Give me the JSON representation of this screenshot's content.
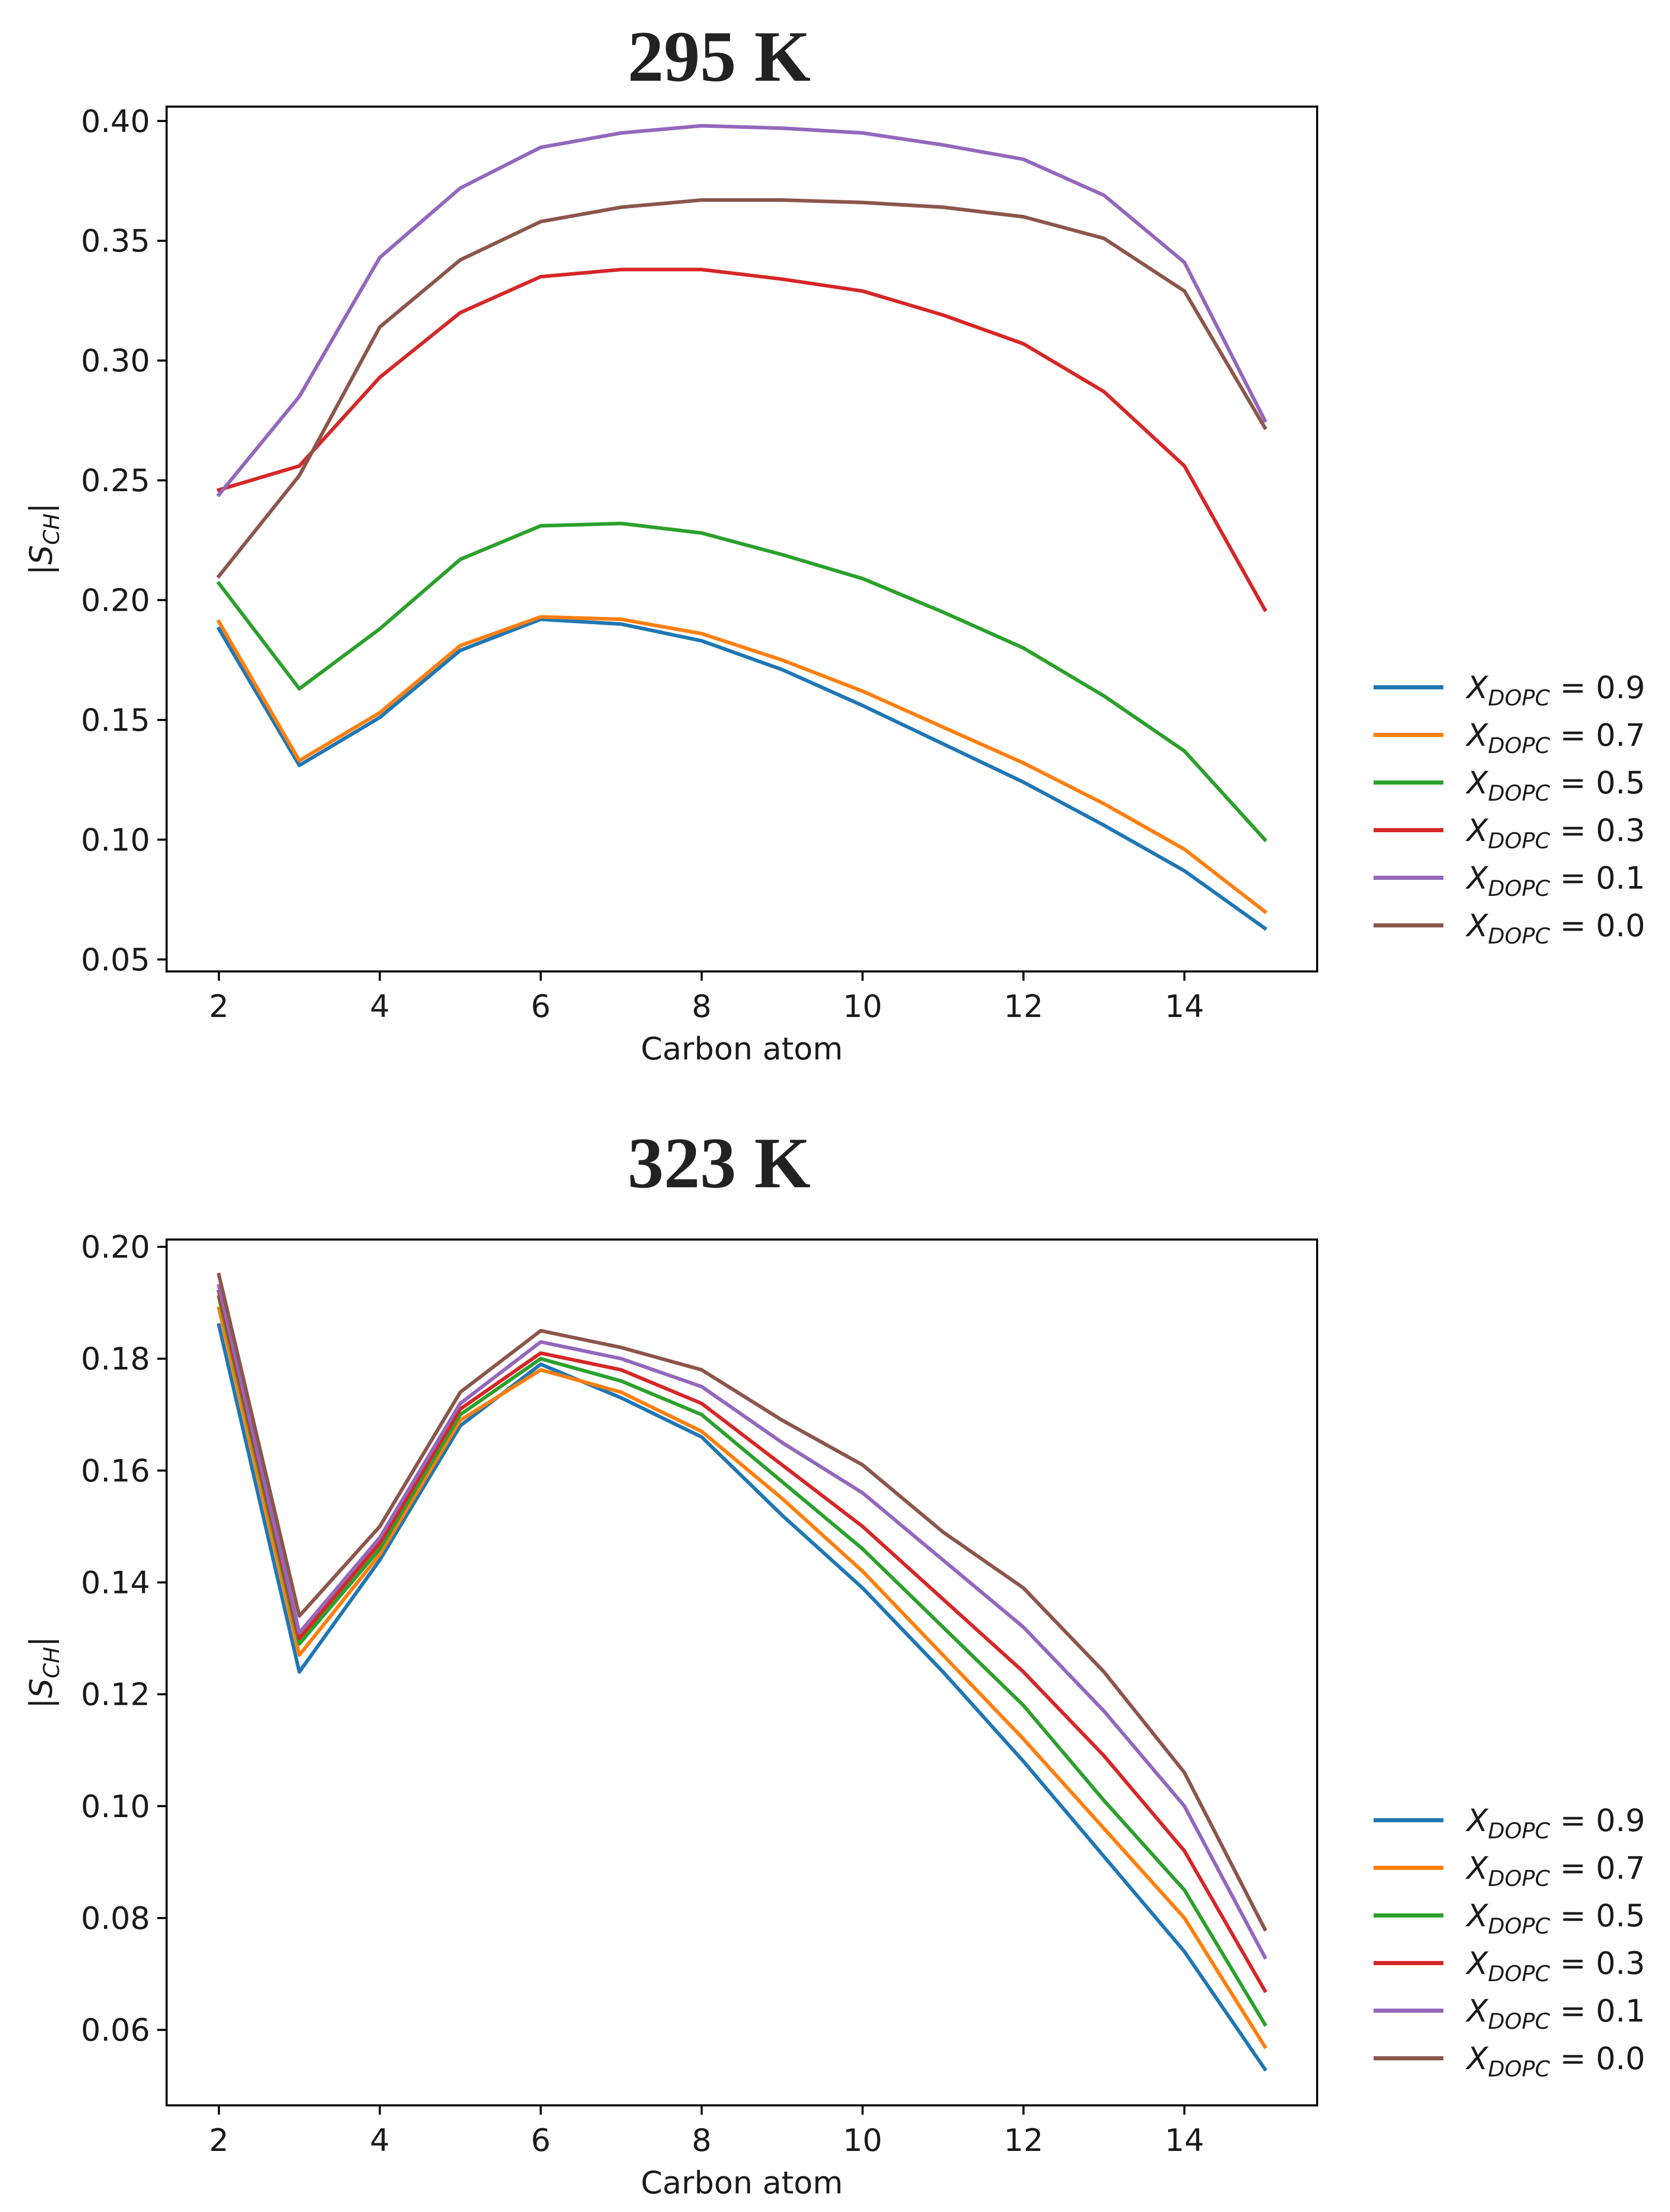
{
  "colors": {
    "0.9": "#1f77b4",
    "0.7": "#ff7f0e",
    "0.5": "#2ca02c",
    "0.3": "#d62728",
    "0.1": "#9467bd",
    "0.0": "#8c564b"
  },
  "chart_data": [
    {
      "type": "line",
      "title": "295 K",
      "xlabel": "Carbon atom",
      "ylabel": "|S_CH|",
      "xlim": [
        1.35,
        15.65
      ],
      "ylim": [
        0.045,
        0.406
      ],
      "xticks": [
        2,
        4,
        6,
        8,
        10,
        12,
        14
      ],
      "yticks": [
        0.05,
        0.1,
        0.15,
        0.2,
        0.25,
        0.3,
        0.35,
        0.4
      ],
      "ytick_labels": [
        "0.05",
        "0.10",
        "0.15",
        "0.20",
        "0.25",
        "0.30",
        "0.35",
        "0.40"
      ],
      "legend_position": "outside-right",
      "x": [
        2,
        3,
        4,
        5,
        6,
        7,
        8,
        9,
        10,
        11,
        12,
        13,
        14,
        15
      ],
      "series": [
        {
          "name": "X_DOPC = 0.9",
          "var": "X",
          "sub": "DOPC",
          "val": "= 0.9",
          "color_key": "0.9",
          "values": [
            0.188,
            0.131,
            0.151,
            0.179,
            0.192,
            0.19,
            0.183,
            0.171,
            0.156,
            0.14,
            0.124,
            0.106,
            0.087,
            0.063
          ]
        },
        {
          "name": "X_DOPC = 0.7",
          "var": "X",
          "sub": "DOPC",
          "val": "= 0.7",
          "color_key": "0.7",
          "values": [
            0.191,
            0.133,
            0.153,
            0.181,
            0.193,
            0.192,
            0.186,
            0.175,
            0.162,
            0.147,
            0.132,
            0.115,
            0.096,
            0.07
          ]
        },
        {
          "name": "X_DOPC = 0.5",
          "var": "X",
          "sub": "DOPC",
          "val": "= 0.5",
          "color_key": "0.5",
          "values": [
            0.207,
            0.163,
            0.188,
            0.217,
            0.231,
            0.232,
            0.228,
            0.219,
            0.209,
            0.195,
            0.18,
            0.16,
            0.137,
            0.1
          ]
        },
        {
          "name": "X_DOPC = 0.3",
          "var": "X",
          "sub": "DOPC",
          "val": "= 0.3",
          "color_key": "0.3",
          "values": [
            0.246,
            0.256,
            0.293,
            0.32,
            0.335,
            0.338,
            0.338,
            0.334,
            0.329,
            0.319,
            0.307,
            0.287,
            0.256,
            0.196
          ]
        },
        {
          "name": "X_DOPC = 0.1",
          "var": "X",
          "sub": "DOPC",
          "val": "= 0.1",
          "color_key": "0.1",
          "values": [
            0.244,
            0.285,
            0.343,
            0.372,
            0.389,
            0.395,
            0.398,
            0.397,
            0.395,
            0.39,
            0.384,
            0.369,
            0.341,
            0.275
          ]
        },
        {
          "name": "X_DOPC = 0.0",
          "var": "X",
          "sub": "DOPC",
          "val": "= 0.0",
          "color_key": "0.0",
          "values": [
            0.21,
            0.252,
            0.314,
            0.342,
            0.358,
            0.364,
            0.367,
            0.367,
            0.366,
            0.364,
            0.36,
            0.351,
            0.329,
            0.272
          ]
        }
      ]
    },
    {
      "type": "line",
      "title": "323 K",
      "xlabel": "Carbon atom",
      "ylabel": "|S_CH|",
      "xlim": [
        1.35,
        15.65
      ],
      "ylim": [
        0.0465,
        0.2013
      ],
      "xticks": [
        2,
        4,
        6,
        8,
        10,
        12,
        14
      ],
      "yticks": [
        0.06,
        0.08,
        0.1,
        0.12,
        0.14,
        0.16,
        0.18,
        0.2
      ],
      "ytick_labels": [
        "0.06",
        "0.08",
        "0.10",
        "0.12",
        "0.14",
        "0.16",
        "0.18",
        "0.20"
      ],
      "legend_position": "outside-right",
      "x": [
        2,
        3,
        4,
        5,
        6,
        7,
        8,
        9,
        10,
        11,
        12,
        13,
        14,
        15
      ],
      "series": [
        {
          "name": "X_DOPC = 0.9",
          "var": "X",
          "sub": "DOPC",
          "val": "= 0.9",
          "color_key": "0.9",
          "values": [
            0.186,
            0.124,
            0.144,
            0.168,
            0.179,
            0.173,
            0.166,
            0.152,
            0.139,
            0.124,
            0.108,
            0.091,
            0.074,
            0.053
          ]
        },
        {
          "name": "X_DOPC = 0.7",
          "var": "X",
          "sub": "DOPC",
          "val": "= 0.7",
          "color_key": "0.7",
          "values": [
            0.189,
            0.127,
            0.145,
            0.169,
            0.178,
            0.174,
            0.167,
            0.155,
            0.142,
            0.127,
            0.112,
            0.096,
            0.08,
            0.057
          ]
        },
        {
          "name": "X_DOPC = 0.5",
          "var": "X",
          "sub": "DOPC",
          "val": "= 0.5",
          "color_key": "0.5",
          "values": [
            0.191,
            0.129,
            0.146,
            0.17,
            0.18,
            0.176,
            0.17,
            0.158,
            0.146,
            0.132,
            0.118,
            0.101,
            0.085,
            0.061
          ]
        },
        {
          "name": "X_DOPC = 0.3",
          "var": "X",
          "sub": "DOPC",
          "val": "= 0.3",
          "color_key": "0.3",
          "values": [
            0.192,
            0.13,
            0.147,
            0.171,
            0.181,
            0.178,
            0.172,
            0.161,
            0.15,
            0.137,
            0.124,
            0.109,
            0.092,
            0.067
          ]
        },
        {
          "name": "X_DOPC = 0.1",
          "var": "X",
          "sub": "DOPC",
          "val": "= 0.1",
          "color_key": "0.1",
          "values": [
            0.193,
            0.131,
            0.148,
            0.172,
            0.183,
            0.18,
            0.175,
            0.165,
            0.156,
            0.144,
            0.132,
            0.117,
            0.1,
            0.073
          ]
        },
        {
          "name": "X_DOPC = 0.0",
          "var": "X",
          "sub": "DOPC",
          "val": "= 0.0",
          "color_key": "0.0",
          "values": [
            0.195,
            0.134,
            0.15,
            0.174,
            0.185,
            0.182,
            0.178,
            0.169,
            0.161,
            0.149,
            0.139,
            0.124,
            0.106,
            0.078
          ]
        }
      ]
    }
  ]
}
